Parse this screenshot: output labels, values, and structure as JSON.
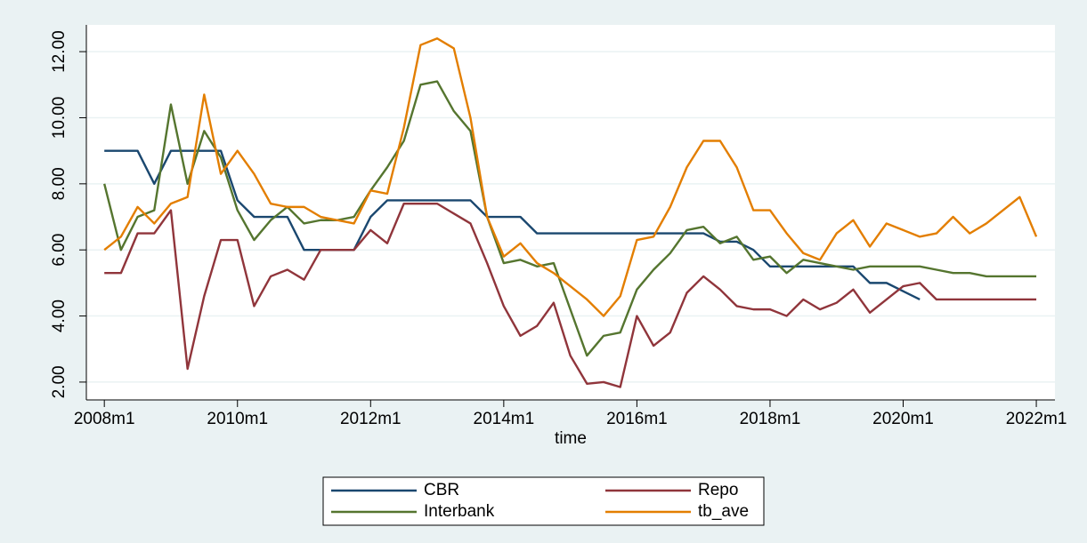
{
  "chart_data": {
    "type": "line",
    "x_label": "time",
    "xlim": [
      2007.73,
      2022.28
    ],
    "ylim": [
      1.46,
      12.81
    ],
    "xticks": [
      {
        "value": 2008,
        "label": "2008m1"
      },
      {
        "value": 2010,
        "label": "2010m1"
      },
      {
        "value": 2012,
        "label": "2012m1"
      },
      {
        "value": 2014,
        "label": "2014m1"
      },
      {
        "value": 2016,
        "label": "2016m1"
      },
      {
        "value": 2018,
        "label": "2018m1"
      },
      {
        "value": 2020,
        "label": "2020m1"
      },
      {
        "value": 2022,
        "label": "2022m1"
      }
    ],
    "yticks": [
      {
        "value": 2,
        "label": "2.00"
      },
      {
        "value": 4,
        "label": "4.00"
      },
      {
        "value": 6,
        "label": "6.00"
      },
      {
        "value": 8,
        "label": "8.00"
      },
      {
        "value": 10,
        "label": "10.00"
      },
      {
        "value": 12,
        "label": "12.00"
      }
    ],
    "grid": true,
    "x": [
      2008,
      2008.25,
      2008.5,
      2008.75,
      2009,
      2009.25,
      2009.5,
      2009.75,
      2010,
      2010.25,
      2010.5,
      2010.75,
      2011,
      2011.25,
      2011.5,
      2011.75,
      2012,
      2012.25,
      2012.5,
      2012.75,
      2013,
      2013.25,
      2013.5,
      2013.75,
      2014,
      2014.25,
      2014.5,
      2014.75,
      2015,
      2015.25,
      2015.5,
      2015.75,
      2016,
      2016.25,
      2016.5,
      2016.75,
      2017,
      2017.25,
      2017.5,
      2017.75,
      2018,
      2018.25,
      2018.5,
      2018.75,
      2019,
      2019.25,
      2019.5,
      2019.75,
      2020,
      2020.25,
      2020.5,
      2020.75,
      2021,
      2021.25,
      2021.5,
      2021.75,
      2022
    ],
    "series": [
      {
        "name": "CBR",
        "color": "#1a476f",
        "values": [
          9,
          9,
          9,
          8,
          9,
          9,
          9,
          9,
          7.5,
          7,
          7,
          7,
          6,
          6,
          6,
          6,
          7,
          7.5,
          7.5,
          7.5,
          7.5,
          7.5,
          7.5,
          7,
          7,
          7,
          6.5,
          6.5,
          6.5,
          6.5,
          6.5,
          6.5,
          6.5,
          6.5,
          6.5,
          6.5,
          6.5,
          6.25,
          6.25,
          6,
          5.5,
          5.5,
          5.5,
          5.5,
          5.5,
          5.5,
          5,
          5,
          4.75,
          4.5,
          null,
          null,
          null,
          null,
          null,
          null,
          null
        ]
      },
      {
        "name": "Repo",
        "color": "#90353b",
        "values": [
          5.3,
          5.3,
          6.5,
          6.5,
          7.2,
          2.4,
          4.6,
          6.3,
          6.3,
          4.3,
          5.2,
          5.4,
          5.1,
          6,
          6,
          6,
          6.6,
          6.2,
          7.4,
          7.4,
          7.4,
          7.1,
          6.8,
          5.6,
          4.3,
          3.4,
          3.7,
          4.4,
          2.8,
          1.95,
          2.0,
          1.85,
          4.0,
          3.1,
          3.5,
          4.7,
          5.2,
          4.8,
          4.3,
          4.2,
          4.2,
          4.0,
          4.5,
          4.2,
          4.4,
          4.8,
          4.1,
          4.5,
          4.9,
          5.0,
          4.5,
          4.5,
          4.5,
          4.5,
          4.5,
          4.5,
          4.5
        ]
      },
      {
        "name": "Interbank",
        "color": "#55752f",
        "values": [
          8,
          6,
          7,
          7.2,
          10.4,
          8,
          9.6,
          8.8,
          7.2,
          6.3,
          6.9,
          7.3,
          6.8,
          6.9,
          6.9,
          7.0,
          7.8,
          8.5,
          9.3,
          11.0,
          11.1,
          10.2,
          9.6,
          7.0,
          5.6,
          5.7,
          5.5,
          5.6,
          4.2,
          2.8,
          3.4,
          3.5,
          4.8,
          5.4,
          5.9,
          6.6,
          6.7,
          6.2,
          6.4,
          5.7,
          5.8,
          5.3,
          5.7,
          5.6,
          5.5,
          5.4,
          5.5,
          5.5,
          5.5,
          5.5,
          5.4,
          5.3,
          5.3,
          5.2,
          5.2,
          5.2,
          5.2
        ]
      },
      {
        "name": "tb_ave",
        "color": "#e37e00",
        "values": [
          6.0,
          6.4,
          7.3,
          6.8,
          7.4,
          7.6,
          10.7,
          8.3,
          9.0,
          8.3,
          7.4,
          7.3,
          7.3,
          7.0,
          6.9,
          6.8,
          7.8,
          7.7,
          9.7,
          12.2,
          12.4,
          12.1,
          10.0,
          7.0,
          5.8,
          6.2,
          5.6,
          5.3,
          4.9,
          4.5,
          4.0,
          4.6,
          6.3,
          6.4,
          7.3,
          8.5,
          9.3,
          9.3,
          8.5,
          7.2,
          7.2,
          6.5,
          5.9,
          5.7,
          6.5,
          6.9,
          6.1,
          6.8,
          6.6,
          6.4,
          6.5,
          7.0,
          6.5,
          6.8,
          7.2,
          7.6,
          6.4
        ]
      }
    ]
  }
}
